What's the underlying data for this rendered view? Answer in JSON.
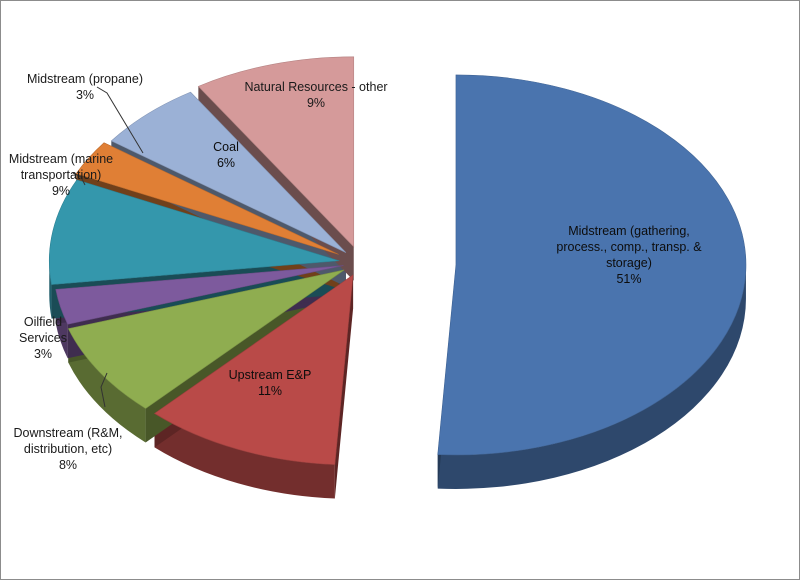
{
  "chart_data": {
    "type": "pie",
    "style": "exploded-3d",
    "title": "",
    "legend": "none",
    "slices": [
      {
        "label": "Midstream (gathering, process., comp., transp. & storage)",
        "value": 51,
        "value_label": "51%",
        "color": "#4a74ae"
      },
      {
        "label": "Upstream E&P",
        "value": 11,
        "value_label": "11%",
        "color": "#b94a48"
      },
      {
        "label": "Downstream (R&M, distribution, etc)",
        "value": 8,
        "value_label": "8%",
        "color": "#8fad50"
      },
      {
        "label": "Oilfield Services",
        "value": 3,
        "value_label": "3%",
        "color": "#7d5a9d"
      },
      {
        "label": "Midstream (marine transportation)",
        "value": 9,
        "value_label": "9%",
        "color": "#3497ac"
      },
      {
        "label": "Midstream (propane)",
        "value": 3,
        "value_label": "3%",
        "color": "#e07f35"
      },
      {
        "label": "Coal",
        "value": 6,
        "value_label": "6%",
        "color": "#9bb1d6"
      },
      {
        "label": "Natural Resources - other",
        "value": 9,
        "value_label": "9%",
        "color": "#d59a9a"
      }
    ]
  }
}
